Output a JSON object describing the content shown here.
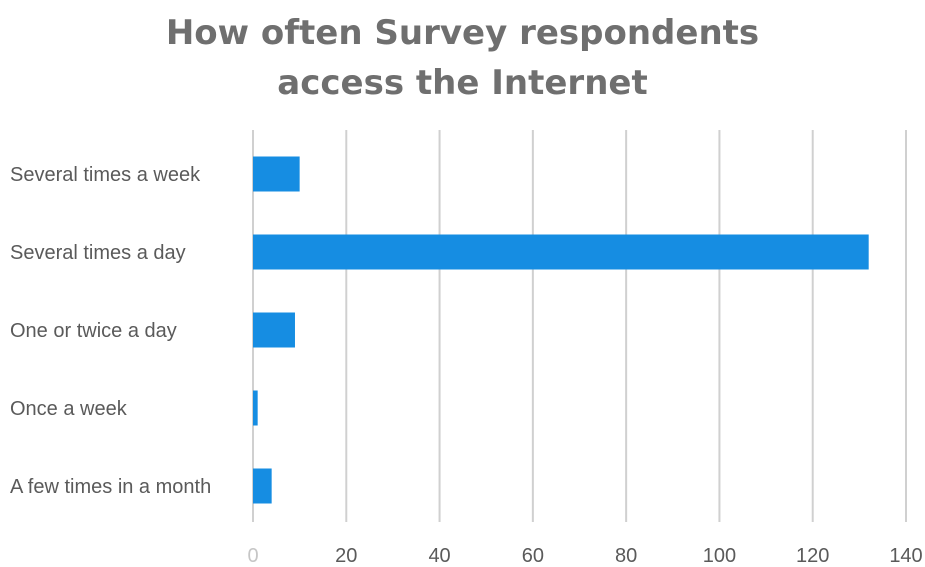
{
  "chart_data": {
    "type": "bar",
    "orientation": "horizontal",
    "title": "How often Survey respondents access the Internet",
    "title_lines": [
      "How often Survey respondents",
      "access the Internet"
    ],
    "xlabel": "",
    "ylabel": "",
    "categories": [
      "Several times a week",
      "Several times a day",
      "One or twice a day",
      "Once a week",
      "A few times in a month"
    ],
    "values": [
      10,
      132,
      9,
      1,
      4
    ],
    "xlim": [
      0,
      140
    ],
    "xticks": [
      0,
      20,
      40,
      60,
      80,
      100,
      120,
      140
    ],
    "grid": true,
    "legend": "none",
    "bar_color": "#168de2",
    "grid_color": "#d0d0d0"
  }
}
